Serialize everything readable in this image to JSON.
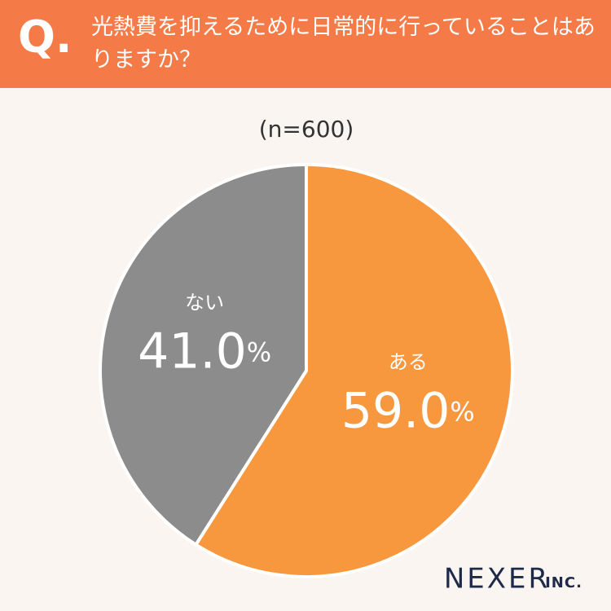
{
  "header": {
    "prefix": "Q."
  },
  "chart_data": {
    "type": "pie",
    "title": "光熱費を抑えるために日常的に行っていることはありますか？",
    "subtitle": "(n=600)",
    "categories": [
      "ある",
      "ない"
    ],
    "values": [
      59.0,
      41.0
    ],
    "value_labels": [
      "59.0%",
      "41.0%"
    ],
    "colors": [
      "#f7983f",
      "#8c8c8c"
    ]
  },
  "footer": {
    "logo": "NEXER",
    "logo_suffix": "INC."
  }
}
